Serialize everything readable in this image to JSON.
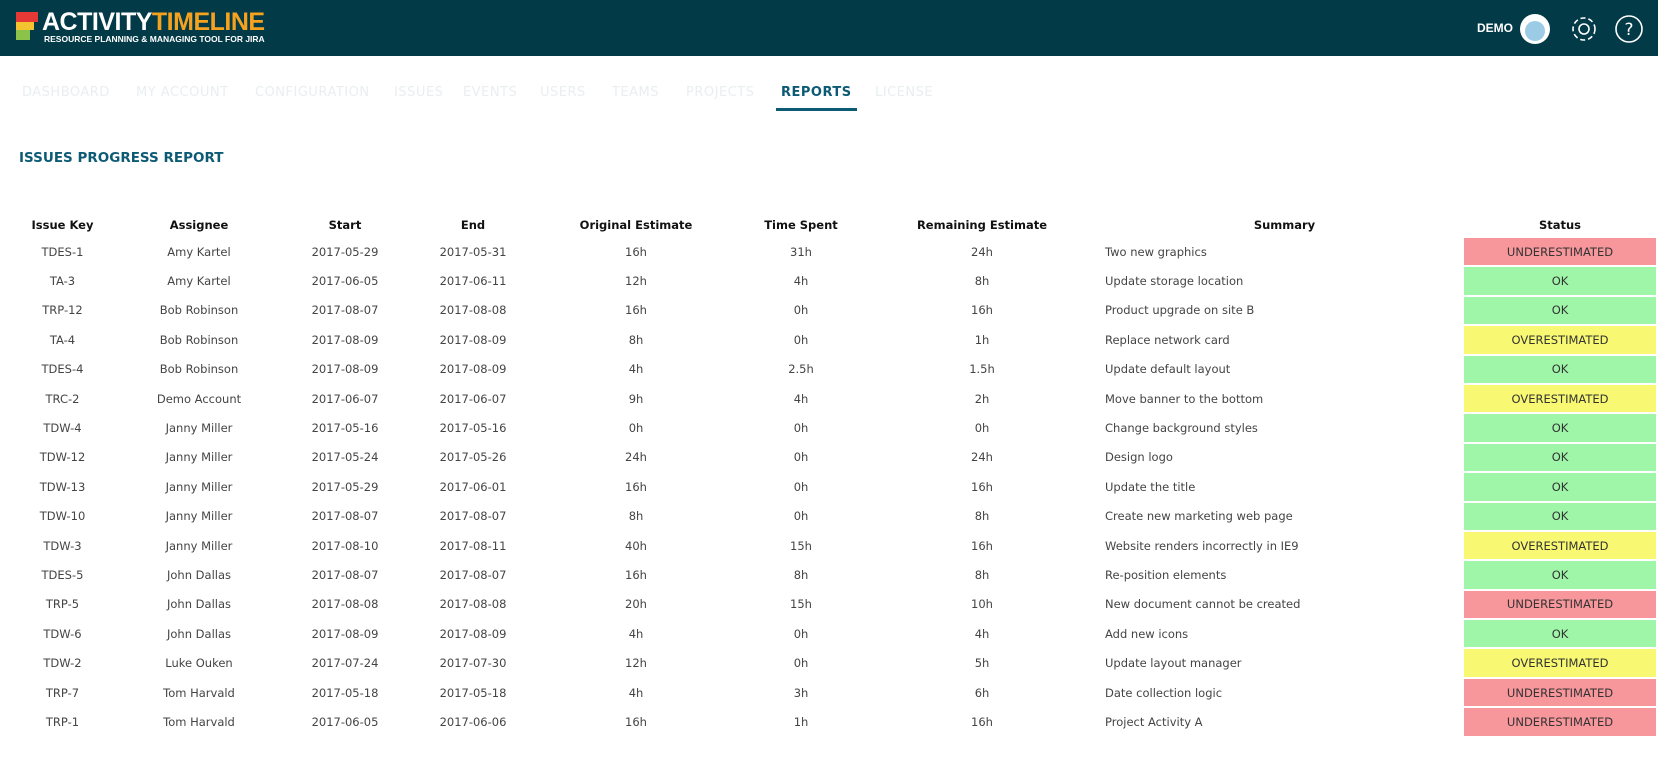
{
  "header": {
    "brand_a": "ACTIVITY",
    "brand_b": "TIMELINE",
    "tagline": "RESOURCE PLANNING & MANAGING TOOL FOR JIRA",
    "user": "DEMO"
  },
  "nav": [
    "DASHBOARD",
    "MY ACCOUNT",
    "CONFIGURATION",
    "ISSUES",
    "EVENTS",
    "USERS",
    "TEAMS",
    "PROJECTS",
    "REPORTS",
    "LICENSE"
  ],
  "active_tab": "REPORTS",
  "report": {
    "title": "ISSUES PROGRESS REPORT",
    "columns": [
      "Issue Key",
      "Assignee",
      "Start",
      "End",
      "Original Estimate",
      "Time Spent",
      "Remaining Estimate",
      "Summary",
      "Status"
    ],
    "status_colors": {
      "UNDERESTIMATED": "#f7969b",
      "OK": "#9ff5a8",
      "OVERESTIMATED": "#f8f873"
    },
    "rows": [
      [
        "TDES-1",
        "Amy Kartel",
        "2017-05-29",
        "2017-05-31",
        "16h",
        "31h",
        "24h",
        "Two new graphics",
        "UNDERESTIMATED"
      ],
      [
        "TA-3",
        "Amy Kartel",
        "2017-06-05",
        "2017-06-11",
        "12h",
        "4h",
        "8h",
        "Update storage location",
        "OK"
      ],
      [
        "TRP-12",
        "Bob Robinson",
        "2017-08-07",
        "2017-08-08",
        "16h",
        "0h",
        "16h",
        "Product upgrade on site B",
        "OK"
      ],
      [
        "TA-4",
        "Bob Robinson",
        "2017-08-09",
        "2017-08-09",
        "8h",
        "0h",
        "1h",
        "Replace network card",
        "OVERESTIMATED"
      ],
      [
        "TDES-4",
        "Bob Robinson",
        "2017-08-09",
        "2017-08-09",
        "4h",
        "2.5h",
        "1.5h",
        "Update default layout",
        "OK"
      ],
      [
        "TRC-2",
        "Demo Account",
        "2017-06-07",
        "2017-06-07",
        "9h",
        "4h",
        "2h",
        "Move banner to the bottom",
        "OVERESTIMATED"
      ],
      [
        "TDW-4",
        "Janny Miller",
        "2017-05-16",
        "2017-05-16",
        "0h",
        "0h",
        "0h",
        "Change background styles",
        "OK"
      ],
      [
        "TDW-12",
        "Janny Miller",
        "2017-05-24",
        "2017-05-26",
        "24h",
        "0h",
        "24h",
        "Design logo",
        "OK"
      ],
      [
        "TDW-13",
        "Janny Miller",
        "2017-05-29",
        "2017-06-01",
        "16h",
        "0h",
        "16h",
        "Update the title",
        "OK"
      ],
      [
        "TDW-10",
        "Janny Miller",
        "2017-08-07",
        "2017-08-07",
        "8h",
        "0h",
        "8h",
        "Create new marketing web page",
        "OK"
      ],
      [
        "TDW-3",
        "Janny Miller",
        "2017-08-10",
        "2017-08-11",
        "40h",
        "15h",
        "16h",
        "Website renders incorrectly in IE9",
        "OVERESTIMATED"
      ],
      [
        "TDES-5",
        "John Dallas",
        "2017-08-07",
        "2017-08-07",
        "16h",
        "8h",
        "8h",
        "Re-position elements",
        "OK"
      ],
      [
        "TRP-5",
        "John Dallas",
        "2017-08-08",
        "2017-08-08",
        "20h",
        "15h",
        "10h",
        "New document cannot be created",
        "UNDERESTIMATED"
      ],
      [
        "TDW-6",
        "John Dallas",
        "2017-08-09",
        "2017-08-09",
        "4h",
        "0h",
        "4h",
        "Add new icons",
        "OK"
      ],
      [
        "TDW-2",
        "Luke Ouken",
        "2017-07-24",
        "2017-07-30",
        "12h",
        "0h",
        "5h",
        "Update layout manager",
        "OVERESTIMATED"
      ],
      [
        "TRP-7",
        "Tom Harvald",
        "2017-05-18",
        "2017-05-18",
        "4h",
        "3h",
        "6h",
        "Date collection logic",
        "UNDERESTIMATED"
      ],
      [
        "TRP-1",
        "Tom Harvald",
        "2017-06-05",
        "2017-06-06",
        "16h",
        "1h",
        "16h",
        "Project Activity A",
        "UNDERESTIMATED"
      ]
    ]
  }
}
